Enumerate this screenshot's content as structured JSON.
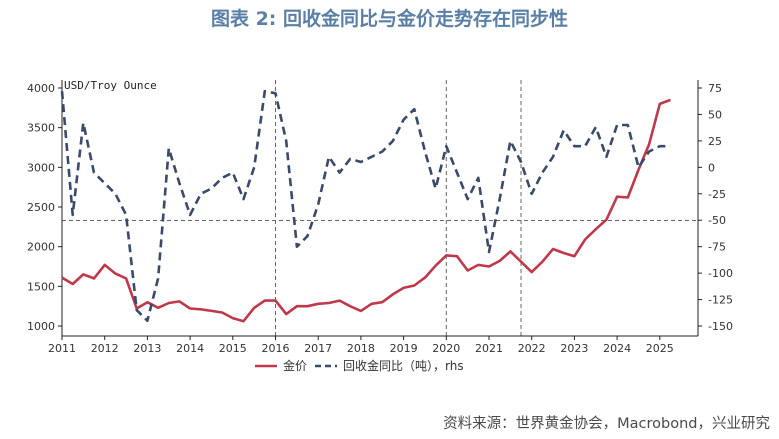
{
  "title": "图表 2:  回收金同比与金价走势存在同步性",
  "source": "资料来源：世界黄金协会，Macrobond，兴业研究",
  "chart_data": {
    "type": "line",
    "title": "图表 2:  回收金同比与金价走势存在同步性",
    "left_axis_unit": "USD/Troy Ounce",
    "x_categories": [
      "2011",
      "2012",
      "2013",
      "2014",
      "2015",
      "2016",
      "2017",
      "2018",
      "2019",
      "2020",
      "2021",
      "2022",
      "2023",
      "2024",
      "2025"
    ],
    "x_range": [
      2011.0,
      2025.5
    ],
    "ylim_left": [
      1000,
      4000
    ],
    "yticks_left": [
      1000,
      1500,
      2000,
      2500,
      3000,
      3500,
      4000
    ],
    "ylim_right": [
      -150,
      75
    ],
    "yticks_right": [
      -150,
      -125,
      -100,
      -75,
      -50,
      -25,
      0,
      25,
      50,
      75
    ],
    "vertical_reference_lines": [
      2016.0,
      2020.0,
      2021.75
    ],
    "horizontal_reference_line_left": 2330,
    "series": [
      {
        "name": "金价",
        "axis": "left",
        "color": "#c0394b",
        "dash": "solid",
        "x": [
          2011.0,
          2011.25,
          2011.5,
          2011.75,
          2012.0,
          2012.25,
          2012.5,
          2012.75,
          2013.0,
          2013.25,
          2013.5,
          2013.75,
          2014.0,
          2014.25,
          2014.5,
          2014.75,
          2015.0,
          2015.25,
          2015.5,
          2015.75,
          2016.0,
          2016.25,
          2016.5,
          2016.75,
          2017.0,
          2017.25,
          2017.5,
          2017.75,
          2018.0,
          2018.25,
          2018.5,
          2018.75,
          2019.0,
          2019.25,
          2019.5,
          2019.75,
          2020.0,
          2020.25,
          2020.5,
          2020.75,
          2021.0,
          2021.25,
          2021.5,
          2021.75,
          2022.0,
          2022.25,
          2022.5,
          2022.75,
          2023.0,
          2023.25,
          2023.5,
          2023.75,
          2024.0,
          2024.25,
          2024.5,
          2024.75,
          2025.0,
          2025.25
        ],
        "values": [
          1610,
          1530,
          1650,
          1600,
          1770,
          1660,
          1600,
          1220,
          1300,
          1230,
          1290,
          1310,
          1220,
          1210,
          1190,
          1170,
          1100,
          1060,
          1230,
          1320,
          1320,
          1150,
          1250,
          1250,
          1280,
          1290,
          1320,
          1250,
          1190,
          1280,
          1300,
          1400,
          1480,
          1510,
          1610,
          1760,
          1890,
          1880,
          1700,
          1770,
          1750,
          1820,
          1940,
          1810,
          1680,
          1810,
          1970,
          1920,
          1880,
          2090,
          2220,
          2340,
          2630,
          2620,
          2970,
          3290,
          3800,
          3850
        ]
      },
      {
        "name": "回收金同比（吨），rhs",
        "axis": "right",
        "color": "#3a4a6b",
        "dash": "dashed",
        "x": [
          2011.0,
          2011.25,
          2011.5,
          2011.75,
          2012.0,
          2012.25,
          2012.5,
          2012.75,
          2013.0,
          2013.25,
          2013.5,
          2013.75,
          2014.0,
          2014.25,
          2014.5,
          2014.75,
          2015.0,
          2015.25,
          2015.5,
          2015.75,
          2016.0,
          2016.25,
          2016.5,
          2016.75,
          2017.0,
          2017.25,
          2017.5,
          2017.75,
          2018.0,
          2018.25,
          2018.5,
          2018.75,
          2019.0,
          2019.25,
          2019.5,
          2019.75,
          2020.0,
          2020.25,
          2020.5,
          2020.75,
          2021.0,
          2021.25,
          2021.5,
          2021.75,
          2022.0,
          2022.25,
          2022.5,
          2022.75,
          2023.0,
          2023.25,
          2023.5,
          2023.75,
          2024.0,
          2024.25,
          2024.5,
          2024.75,
          2025.0,
          2025.25
        ],
        "values": [
          72,
          -45,
          42,
          -5,
          -15,
          -25,
          -45,
          -135,
          -145,
          -105,
          18,
          -15,
          -45,
          -25,
          -20,
          -10,
          -5,
          -30,
          0,
          72,
          70,
          25,
          -75,
          -65,
          -35,
          10,
          -5,
          8,
          5,
          10,
          15,
          25,
          45,
          55,
          15,
          -20,
          20,
          -5,
          -30,
          -10,
          -80,
          -30,
          25,
          5,
          -25,
          -5,
          10,
          35,
          20,
          20,
          38,
          10,
          40,
          40,
          0,
          15,
          20,
          20
        ]
      }
    ]
  }
}
